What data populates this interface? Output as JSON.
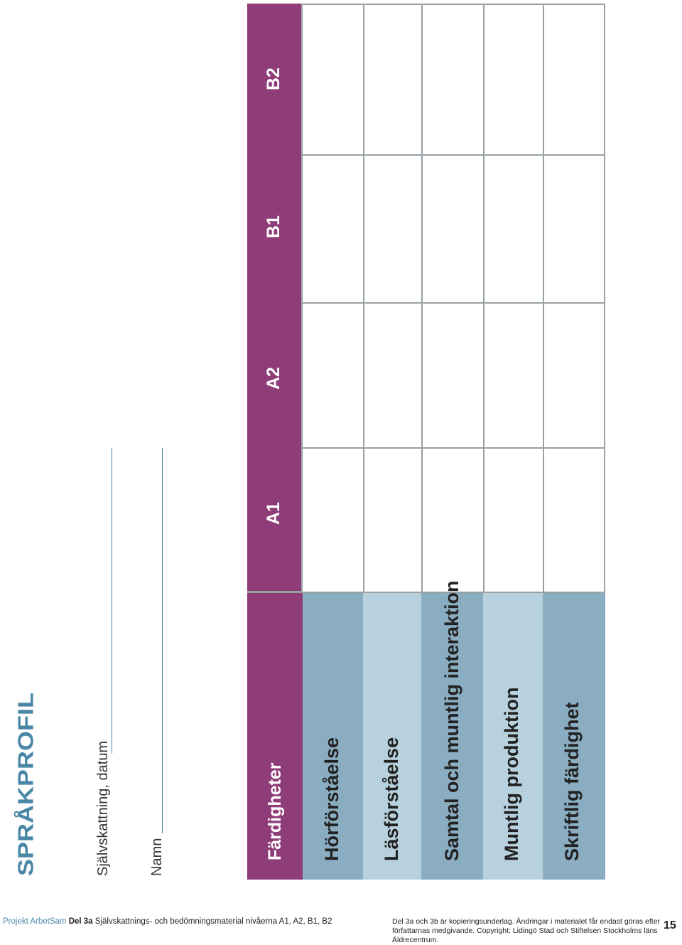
{
  "page": {
    "title": "SPRÅKPROFIL",
    "self_assessment_label": "Självskattning, datum",
    "name_label": "Namn"
  },
  "table": {
    "header_label": "Färdigheter",
    "levels": [
      "A1",
      "A2",
      "B1",
      "B2"
    ],
    "skills": [
      "Hörförståelse",
      "Läsförståelse",
      "Samtal och muntlig interaktion",
      "Muntlig produktion",
      "Skriftlig färdighet"
    ]
  },
  "footer": {
    "project": "Projekt ArbetSam",
    "section": "Del 3a",
    "description": "Självskattnings- och bedömningsmaterial nivåerna A1, A2, B1, B2",
    "copyright": "Del 3a och 3b är kopieringsunderlag. Ändringar i materialet får endast göras efter författarnas medgivande. Copyright: Lidingö Stad och Stiftelsen Stockholms läns Äldrecentrum.",
    "page_number": "15"
  },
  "colors": {
    "header_purple": "#8e3d79",
    "row_blue": "#8aadc1",
    "row_blue_light": "#b8d1de",
    "title_blue": "#4a86a6",
    "grid_gray": "#98a0a4"
  }
}
